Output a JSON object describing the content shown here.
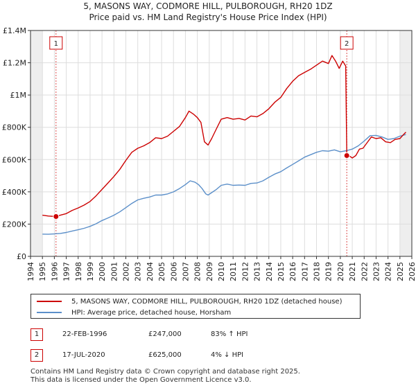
{
  "chart_data": {
    "type": "line",
    "title": "5, MASONS WAY, CODMORE HILL, PULBOROUGH, RH20 1DZ",
    "subtitle": "Price paid vs. HM Land Registry's House Price Index (HPI)",
    "ylim": [
      0,
      1400000
    ],
    "xlim": [
      1994,
      2026
    ],
    "y_ticks": [
      {
        "value": 0,
        "label": "£0"
      },
      {
        "value": 200000,
        "label": "£200K"
      },
      {
        "value": 400000,
        "label": "£400K"
      },
      {
        "value": 600000,
        "label": "£600K"
      },
      {
        "value": 800000,
        "label": "£800K"
      },
      {
        "value": 1000000,
        "label": "£1M"
      },
      {
        "value": 1200000,
        "label": "£1.2M"
      },
      {
        "value": 1400000,
        "label": "£1.4M"
      }
    ],
    "x_ticks": [
      "1994",
      "1995",
      "1996",
      "1997",
      "1998",
      "1999",
      "2000",
      "2001",
      "2002",
      "2003",
      "2004",
      "2005",
      "2006",
      "2007",
      "2008",
      "2009",
      "2010",
      "2011",
      "2012",
      "2013",
      "2014",
      "2015",
      "2016",
      "2017",
      "2018",
      "2019",
      "2020",
      "2021",
      "2022",
      "2023",
      "2024",
      "2025",
      "2026"
    ],
    "grid": true,
    "series": [
      {
        "name": "5, MASONS WAY, CODMORE HILL, PULBOROUGH, RH20 1DZ (detached house)",
        "color": "#cc0000",
        "points": [
          [
            1995.0,
            255000
          ],
          [
            1995.5,
            250000
          ],
          [
            1996.14,
            247000
          ],
          [
            1996.5,
            255000
          ],
          [
            1997.0,
            265000
          ],
          [
            1997.5,
            285000
          ],
          [
            1998.0,
            300000
          ],
          [
            1998.5,
            318000
          ],
          [
            1999.0,
            340000
          ],
          [
            1999.5,
            375000
          ],
          [
            2000.0,
            415000
          ],
          [
            2000.5,
            455000
          ],
          [
            2001.0,
            495000
          ],
          [
            2001.5,
            540000
          ],
          [
            2002.0,
            595000
          ],
          [
            2002.5,
            645000
          ],
          [
            2003.0,
            670000
          ],
          [
            2003.5,
            685000
          ],
          [
            2004.0,
            705000
          ],
          [
            2004.5,
            735000
          ],
          [
            2005.0,
            730000
          ],
          [
            2005.5,
            745000
          ],
          [
            2006.0,
            775000
          ],
          [
            2006.5,
            805000
          ],
          [
            2007.0,
            860000
          ],
          [
            2007.3,
            900000
          ],
          [
            2007.7,
            880000
          ],
          [
            2008.0,
            860000
          ],
          [
            2008.3,
            830000
          ],
          [
            2008.6,
            710000
          ],
          [
            2008.9,
            690000
          ],
          [
            2009.2,
            730000
          ],
          [
            2009.6,
            790000
          ],
          [
            2010.0,
            850000
          ],
          [
            2010.5,
            860000
          ],
          [
            2011.0,
            850000
          ],
          [
            2011.5,
            855000
          ],
          [
            2012.0,
            845000
          ],
          [
            2012.5,
            870000
          ],
          [
            2013.0,
            865000
          ],
          [
            2013.5,
            885000
          ],
          [
            2014.0,
            915000
          ],
          [
            2014.5,
            955000
          ],
          [
            2015.0,
            985000
          ],
          [
            2015.5,
            1040000
          ],
          [
            2016.0,
            1085000
          ],
          [
            2016.5,
            1120000
          ],
          [
            2017.0,
            1140000
          ],
          [
            2017.5,
            1160000
          ],
          [
            2018.0,
            1185000
          ],
          [
            2018.5,
            1210000
          ],
          [
            2019.0,
            1195000
          ],
          [
            2019.3,
            1245000
          ],
          [
            2019.6,
            1210000
          ],
          [
            2019.9,
            1165000
          ],
          [
            2020.2,
            1210000
          ],
          [
            2020.45,
            1180000
          ],
          [
            2020.54,
            625000
          ],
          [
            2020.8,
            620000
          ],
          [
            2021.0,
            610000
          ],
          [
            2021.3,
            625000
          ],
          [
            2021.6,
            665000
          ],
          [
            2021.9,
            670000
          ],
          [
            2022.2,
            700000
          ],
          [
            2022.6,
            740000
          ],
          [
            2023.0,
            730000
          ],
          [
            2023.4,
            735000
          ],
          [
            2023.8,
            710000
          ],
          [
            2024.2,
            705000
          ],
          [
            2024.6,
            725000
          ],
          [
            2025.0,
            730000
          ],
          [
            2025.3,
            755000
          ],
          [
            2025.5,
            770000
          ]
        ]
      },
      {
        "name": "HPI: Average price, detached house, Horsham",
        "color": "#5b8fc9",
        "points": [
          [
            1995.0,
            138000
          ],
          [
            1995.5,
            137000
          ],
          [
            1996.0,
            139000
          ],
          [
            1996.5,
            142000
          ],
          [
            1997.0,
            148000
          ],
          [
            1997.5,
            157000
          ],
          [
            1998.0,
            165000
          ],
          [
            1998.5,
            174000
          ],
          [
            1999.0,
            186000
          ],
          [
            1999.5,
            202000
          ],
          [
            2000.0,
            222000
          ],
          [
            2000.5,
            238000
          ],
          [
            2001.0,
            255000
          ],
          [
            2001.5,
            276000
          ],
          [
            2002.0,
            302000
          ],
          [
            2002.5,
            328000
          ],
          [
            2003.0,
            350000
          ],
          [
            2003.5,
            360000
          ],
          [
            2004.0,
            368000
          ],
          [
            2004.5,
            380000
          ],
          [
            2005.0,
            380000
          ],
          [
            2005.5,
            387000
          ],
          [
            2006.0,
            400000
          ],
          [
            2006.5,
            420000
          ],
          [
            2007.0,
            445000
          ],
          [
            2007.4,
            468000
          ],
          [
            2007.8,
            460000
          ],
          [
            2008.1,
            445000
          ],
          [
            2008.4,
            420000
          ],
          [
            2008.7,
            388000
          ],
          [
            2008.9,
            380000
          ],
          [
            2009.2,
            395000
          ],
          [
            2009.6,
            415000
          ],
          [
            2010.0,
            440000
          ],
          [
            2010.5,
            448000
          ],
          [
            2011.0,
            440000
          ],
          [
            2011.5,
            442000
          ],
          [
            2012.0,
            440000
          ],
          [
            2012.5,
            452000
          ],
          [
            2013.0,
            455000
          ],
          [
            2013.5,
            468000
          ],
          [
            2014.0,
            490000
          ],
          [
            2014.5,
            510000
          ],
          [
            2015.0,
            525000
          ],
          [
            2015.5,
            548000
          ],
          [
            2016.0,
            570000
          ],
          [
            2016.5,
            592000
          ],
          [
            2017.0,
            615000
          ],
          [
            2017.5,
            630000
          ],
          [
            2018.0,
            645000
          ],
          [
            2018.5,
            655000
          ],
          [
            2019.0,
            652000
          ],
          [
            2019.5,
            660000
          ],
          [
            2020.0,
            648000
          ],
          [
            2020.5,
            655000
          ],
          [
            2021.0,
            665000
          ],
          [
            2021.5,
            685000
          ],
          [
            2022.0,
            715000
          ],
          [
            2022.5,
            748000
          ],
          [
            2023.0,
            750000
          ],
          [
            2023.5,
            740000
          ],
          [
            2024.0,
            725000
          ],
          [
            2024.5,
            730000
          ],
          [
            2025.0,
            745000
          ],
          [
            2025.5,
            755000
          ]
        ]
      }
    ],
    "markers": [
      {
        "label": "1",
        "x": 1996.14,
        "y": 247000
      },
      {
        "label": "2",
        "x": 2020.54,
        "y": 625000
      }
    ],
    "shaded_ranges": [
      [
        1994,
        1995.0
      ],
      [
        2025.0,
        2026
      ]
    ]
  },
  "legend": {
    "property_label": "5, MASONS WAY, CODMORE HILL, PULBOROUGH, RH20 1DZ (detached house)",
    "hpi_label": "HPI: Average price, detached house, Horsham"
  },
  "transactions": [
    {
      "num": "1",
      "date": "22-FEB-1996",
      "price": "£247,000",
      "hpi": "83% ↑ HPI"
    },
    {
      "num": "2",
      "date": "17-JUL-2020",
      "price": "£625,000",
      "hpi": "4% ↓ HPI"
    }
  ],
  "footer": {
    "line1": "Contains HM Land Registry data © Crown copyright and database right 2025.",
    "line2": "This data is licensed under the Open Government Licence v3.0."
  },
  "colors": {
    "property": "#cc0000",
    "hpi": "#5b8fc9",
    "marker_border": "#cc0000",
    "grid": "#dddddd"
  }
}
